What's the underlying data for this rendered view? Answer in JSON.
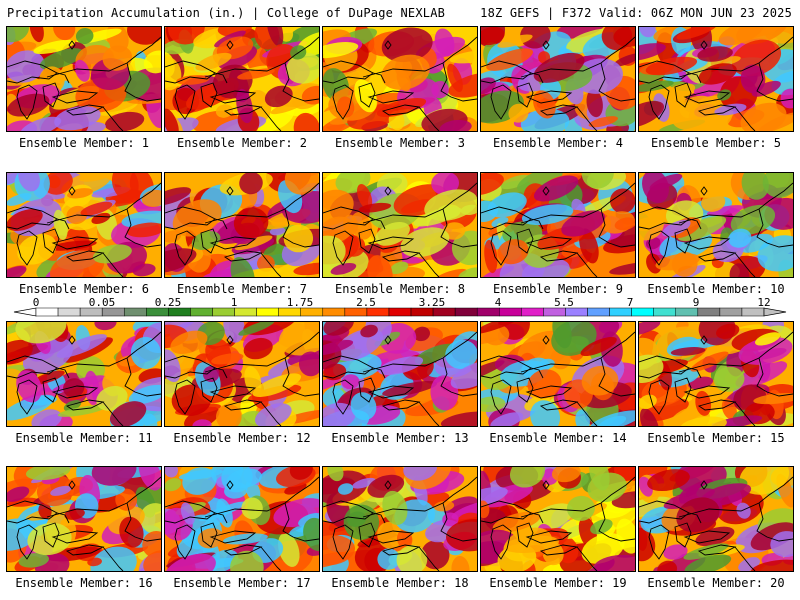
{
  "header": {
    "left": "Precipitation Accumulation (in.) | College of DuPage NEXLAB",
    "right": "18Z GEFS | F372 Valid: 06Z MON JUN 23 2025"
  },
  "label_prefix": "Ensemble Member: ",
  "members": [
    {
      "id": "1",
      "label": "Ensemble Member: 1",
      "seed": 11,
      "bias": 0.45
    },
    {
      "id": "2",
      "label": "Ensemble Member: 2",
      "seed": 22,
      "bias": 0.35
    },
    {
      "id": "3",
      "label": "Ensemble Member: 3",
      "seed": 33,
      "bias": 0.35
    },
    {
      "id": "4",
      "label": "Ensemble Member: 4",
      "seed": 44,
      "bias": 0.6
    },
    {
      "id": "5",
      "label": "Ensemble Member: 5",
      "seed": 55,
      "bias": 0.55
    },
    {
      "id": "6",
      "label": "Ensemble Member: 6",
      "seed": 66,
      "bias": 0.55
    },
    {
      "id": "7",
      "label": "Ensemble Member: 7",
      "seed": 77,
      "bias": 0.55
    },
    {
      "id": "8",
      "label": "Ensemble Member: 8",
      "seed": 88,
      "bias": 0.3
    },
    {
      "id": "9",
      "label": "Ensemble Member: 9",
      "seed": 99,
      "bias": 0.7
    },
    {
      "id": "10",
      "label": "Ensemble Member: 10",
      "seed": 110,
      "bias": 0.55
    },
    {
      "id": "11",
      "label": "Ensemble Member: 11",
      "seed": 121,
      "bias": 0.6
    },
    {
      "id": "12",
      "label": "Ensemble Member: 12",
      "seed": 132,
      "bias": 0.4
    },
    {
      "id": "13",
      "label": "Ensemble Member: 13",
      "seed": 143,
      "bias": 0.75
    },
    {
      "id": "14",
      "label": "Ensemble Member: 14",
      "seed": 154,
      "bias": 0.6
    },
    {
      "id": "15",
      "label": "Ensemble Member: 15",
      "seed": 165,
      "bias": 0.5
    },
    {
      "id": "16",
      "label": "Ensemble Member: 16",
      "seed": 176,
      "bias": 0.6
    },
    {
      "id": "17",
      "label": "Ensemble Member: 17",
      "seed": 187,
      "bias": 0.7
    },
    {
      "id": "18",
      "label": "Ensemble Member: 18",
      "seed": 198,
      "bias": 0.6
    },
    {
      "id": "19",
      "label": "Ensemble Member: 19",
      "seed": 209,
      "bias": 0.4
    },
    {
      "id": "20",
      "label": "Ensemble Member: 20",
      "seed": 220,
      "bias": 0.55
    }
  ],
  "colorbar": {
    "labels": [
      "0",
      "0.05",
      "0.25",
      "1",
      "1.75",
      "2.5",
      "3.25",
      "4",
      "5.5",
      "7",
      "9",
      "12"
    ],
    "colors": [
      "#ffffff",
      "#d9d9d9",
      "#bdbdbd",
      "#969696",
      "#6f8f6f",
      "#3a8f3a",
      "#1f7f1f",
      "#60b030",
      "#9acd32",
      "#d4e830",
      "#ffff00",
      "#ffd700",
      "#ffb000",
      "#ff8c00",
      "#ff6000",
      "#ff3000",
      "#e00000",
      "#c00000",
      "#a00020",
      "#80003a",
      "#a0006a",
      "#c8009a",
      "#e020c8",
      "#c060e0",
      "#9b80ff",
      "#60a0ff",
      "#30d0ff",
      "#00ffff",
      "#40e0d0",
      "#60c0b0",
      "#808080",
      "#a0a0a0",
      "#c0c0c0"
    ]
  }
}
